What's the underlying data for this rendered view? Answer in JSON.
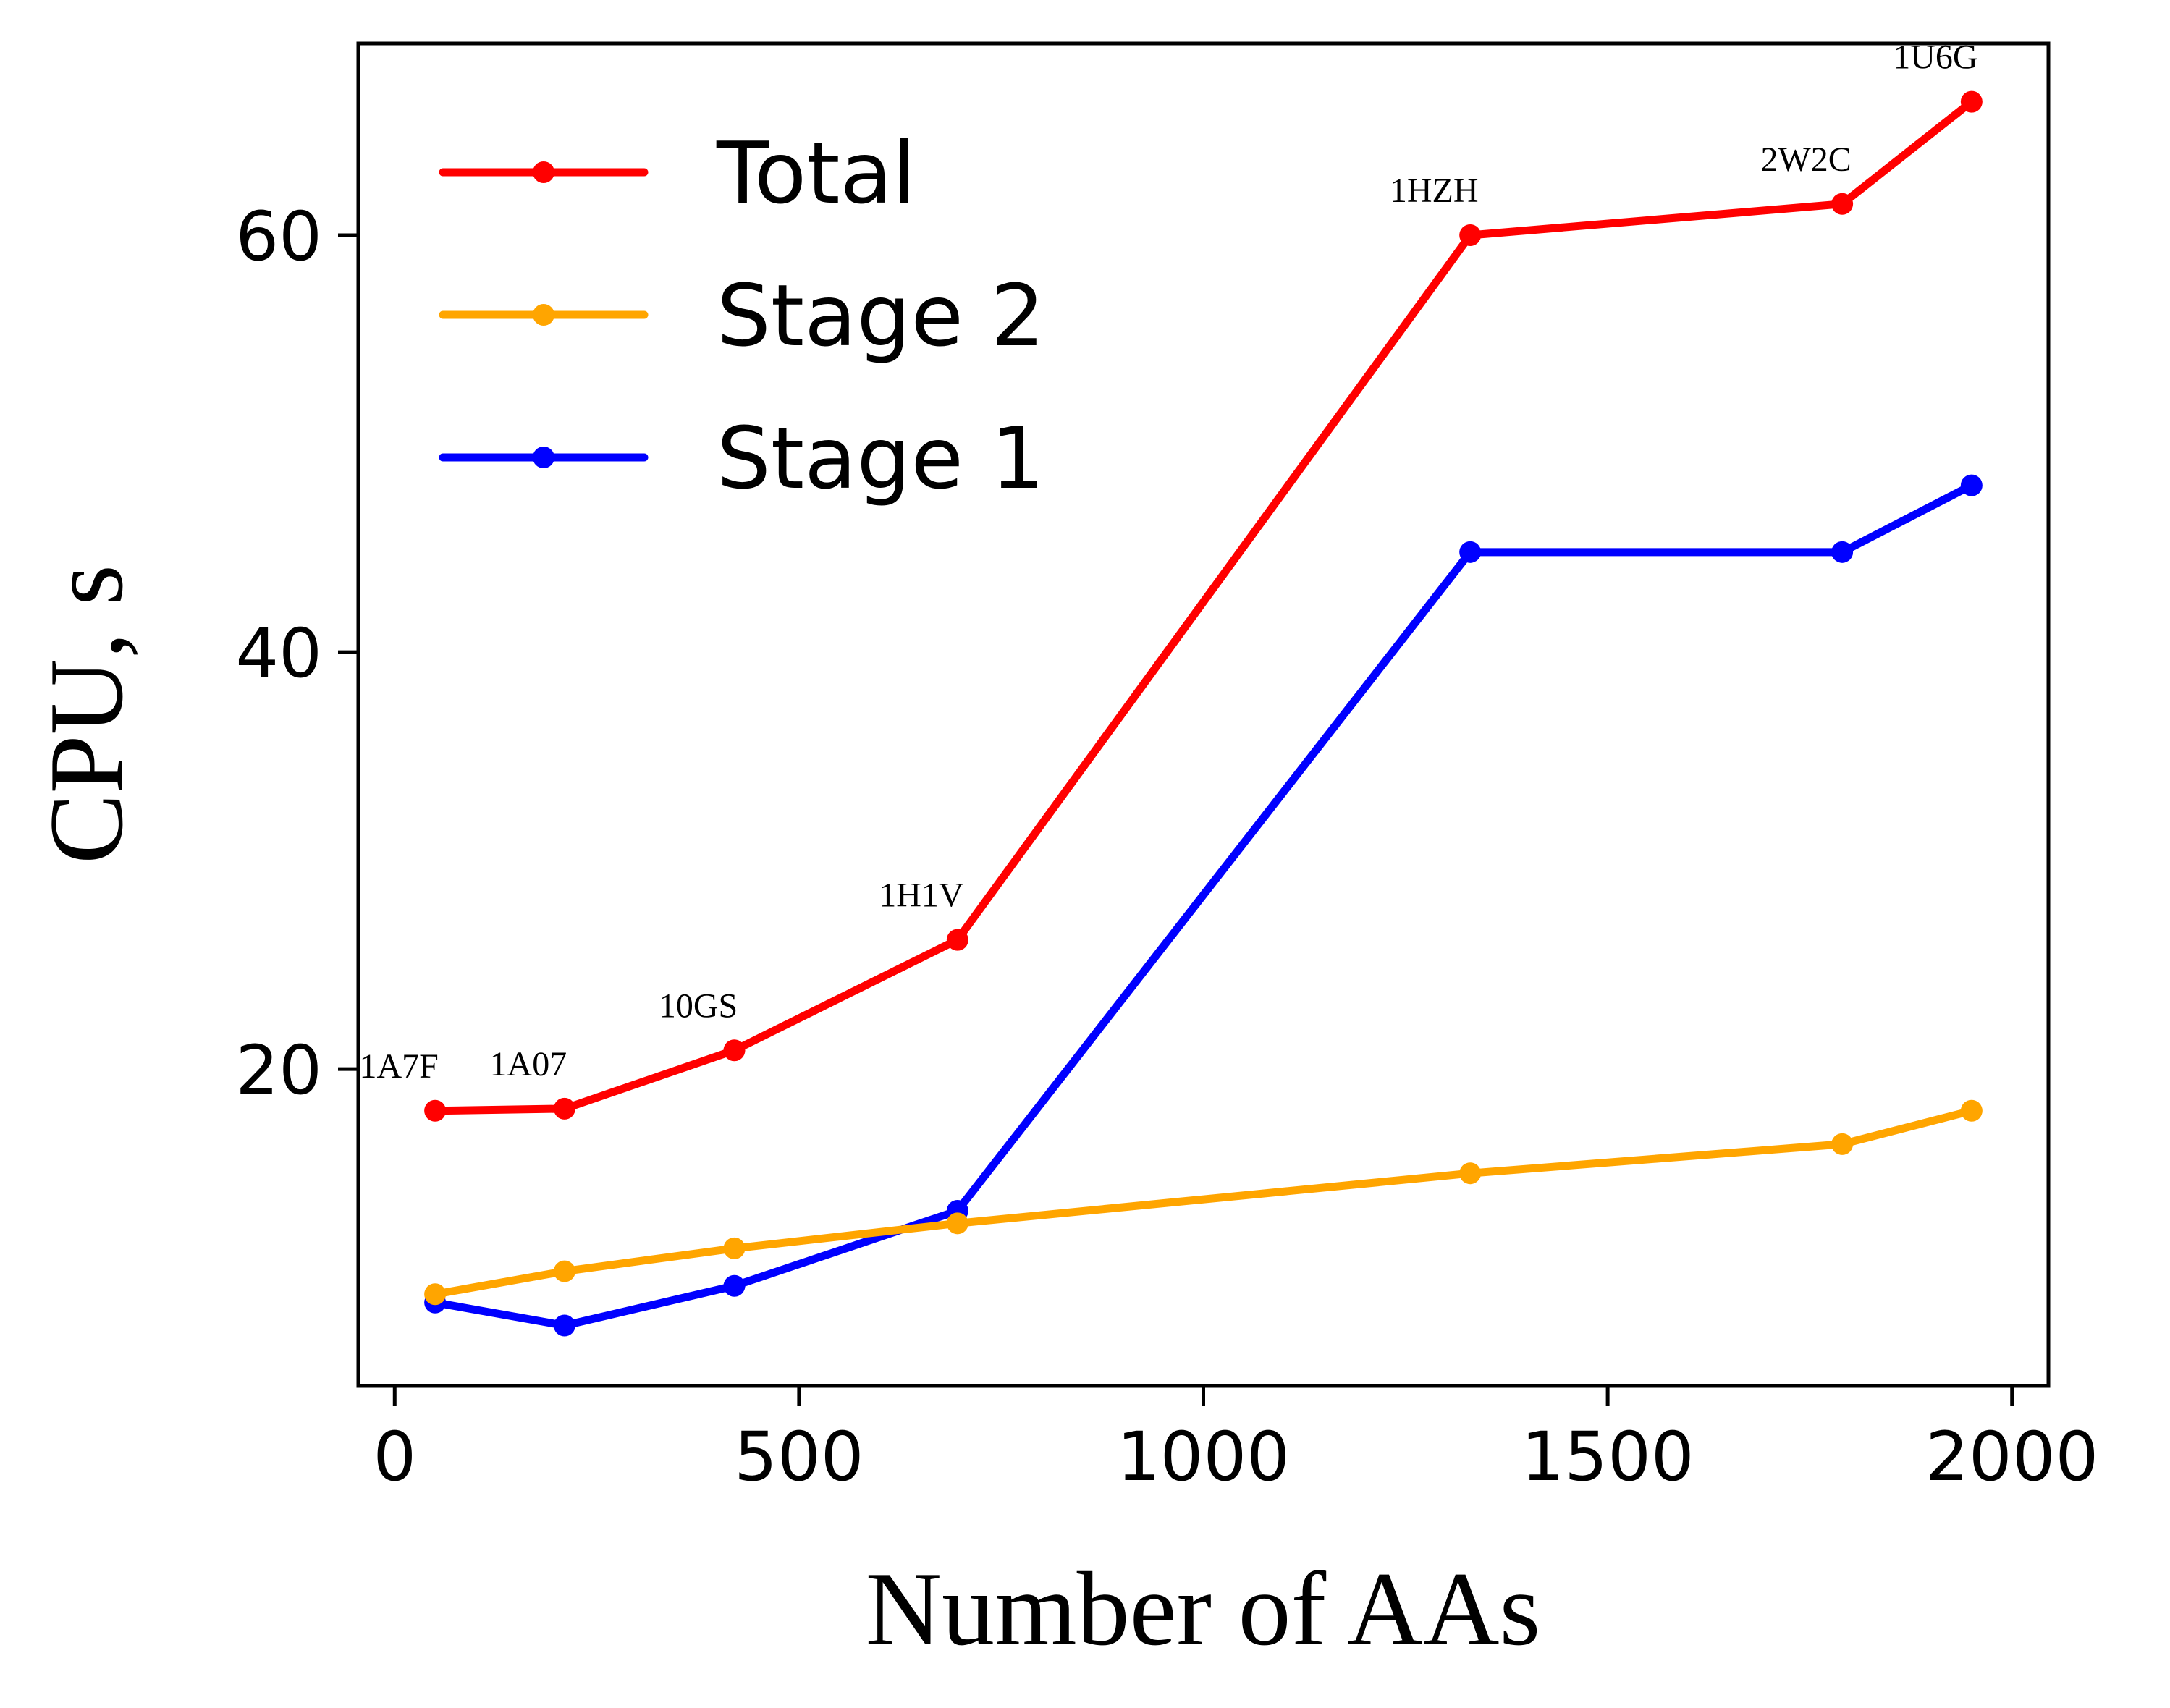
{
  "chart_data": {
    "type": "line",
    "title": "",
    "xlabel": "Number of AAs",
    "ylabel": "CPU, s",
    "xlim": [
      -45,
      2045
    ],
    "ylim": [
      4.8,
      69.2
    ],
    "xticks": [
      0,
      500,
      1000,
      1500,
      2000
    ],
    "yticks": [
      20,
      40,
      60
    ],
    "x": [
      50,
      210,
      420,
      696,
      1330,
      1790,
      1950
    ],
    "point_labels": [
      "1A7F",
      "1A07",
      "10GS",
      "1H1V",
      "1HZH",
      "2W2C",
      "1U6G"
    ],
    "label_series": "Total",
    "series": [
      {
        "name": "Total",
        "color": "#ff0000",
        "values": [
          18.0,
          18.1,
          20.9,
          26.2,
          60.0,
          61.5,
          66.4
        ]
      },
      {
        "name": "Stage 2",
        "color": "#ffa500",
        "values": [
          9.2,
          10.3,
          11.4,
          12.6,
          15.0,
          16.4,
          18.0
        ]
      },
      {
        "name": "Stage 1",
        "color": "#0000ff",
        "values": [
          8.8,
          7.7,
          9.6,
          13.2,
          44.8,
          44.8,
          48.0
        ]
      }
    ],
    "legend": {
      "position": "top-left",
      "order": [
        "Total",
        "Stage 2",
        "Stage 1"
      ]
    },
    "grid": false
  }
}
